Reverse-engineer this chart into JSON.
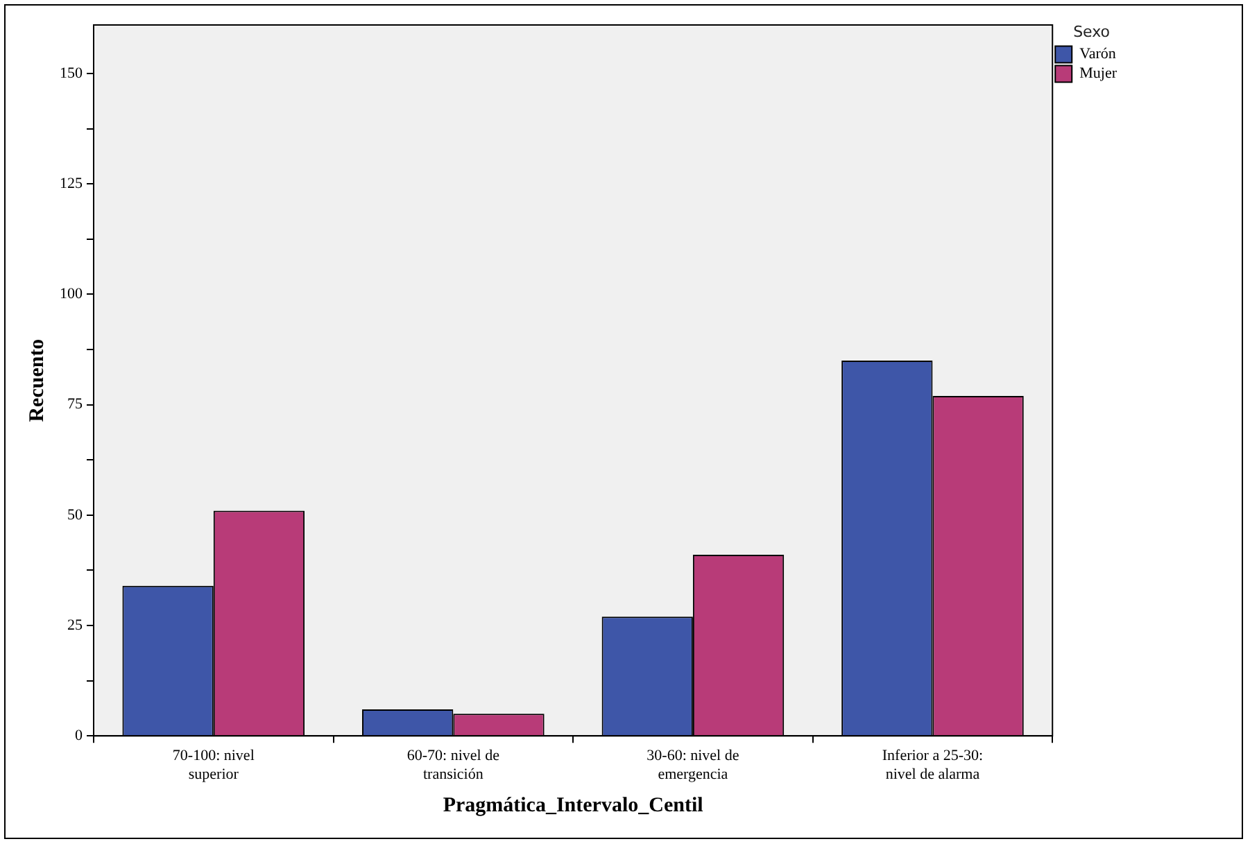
{
  "chart_data": {
    "type": "bar",
    "xlabel": "Pragmática_Intervalo_Centil",
    "ylabel": "Recuento",
    "legend_title": "Sexo",
    "legend": "top right",
    "categories": [
      "70-100: nivel\nsuperior",
      "60-70: nivel de\ntransición",
      "30-60: nivel de\nemergencia",
      "Inferior a 25-30:\nnivel de alarma"
    ],
    "series": [
      {
        "name": "Varón",
        "color": "#3e56a8",
        "values": [
          34,
          6,
          27,
          85
        ]
      },
      {
        "name": "Mujer",
        "color": "#b83b78",
        "values": [
          51,
          5,
          41,
          77
        ]
      }
    ],
    "ylim": [
      0,
      161
    ],
    "yticks": [
      0,
      {
        "value": 12.5,
        "label": null
      },
      25,
      {
        "value": 37.5,
        "label": null
      },
      50,
      {
        "value": 62.5,
        "label": null
      },
      75,
      {
        "value": 87.5,
        "label": null
      },
      100,
      {
        "value": 112.5,
        "label": null
      },
      125,
      {
        "value": 137.5,
        "label": null
      },
      150
    ],
    "grid": false
  }
}
